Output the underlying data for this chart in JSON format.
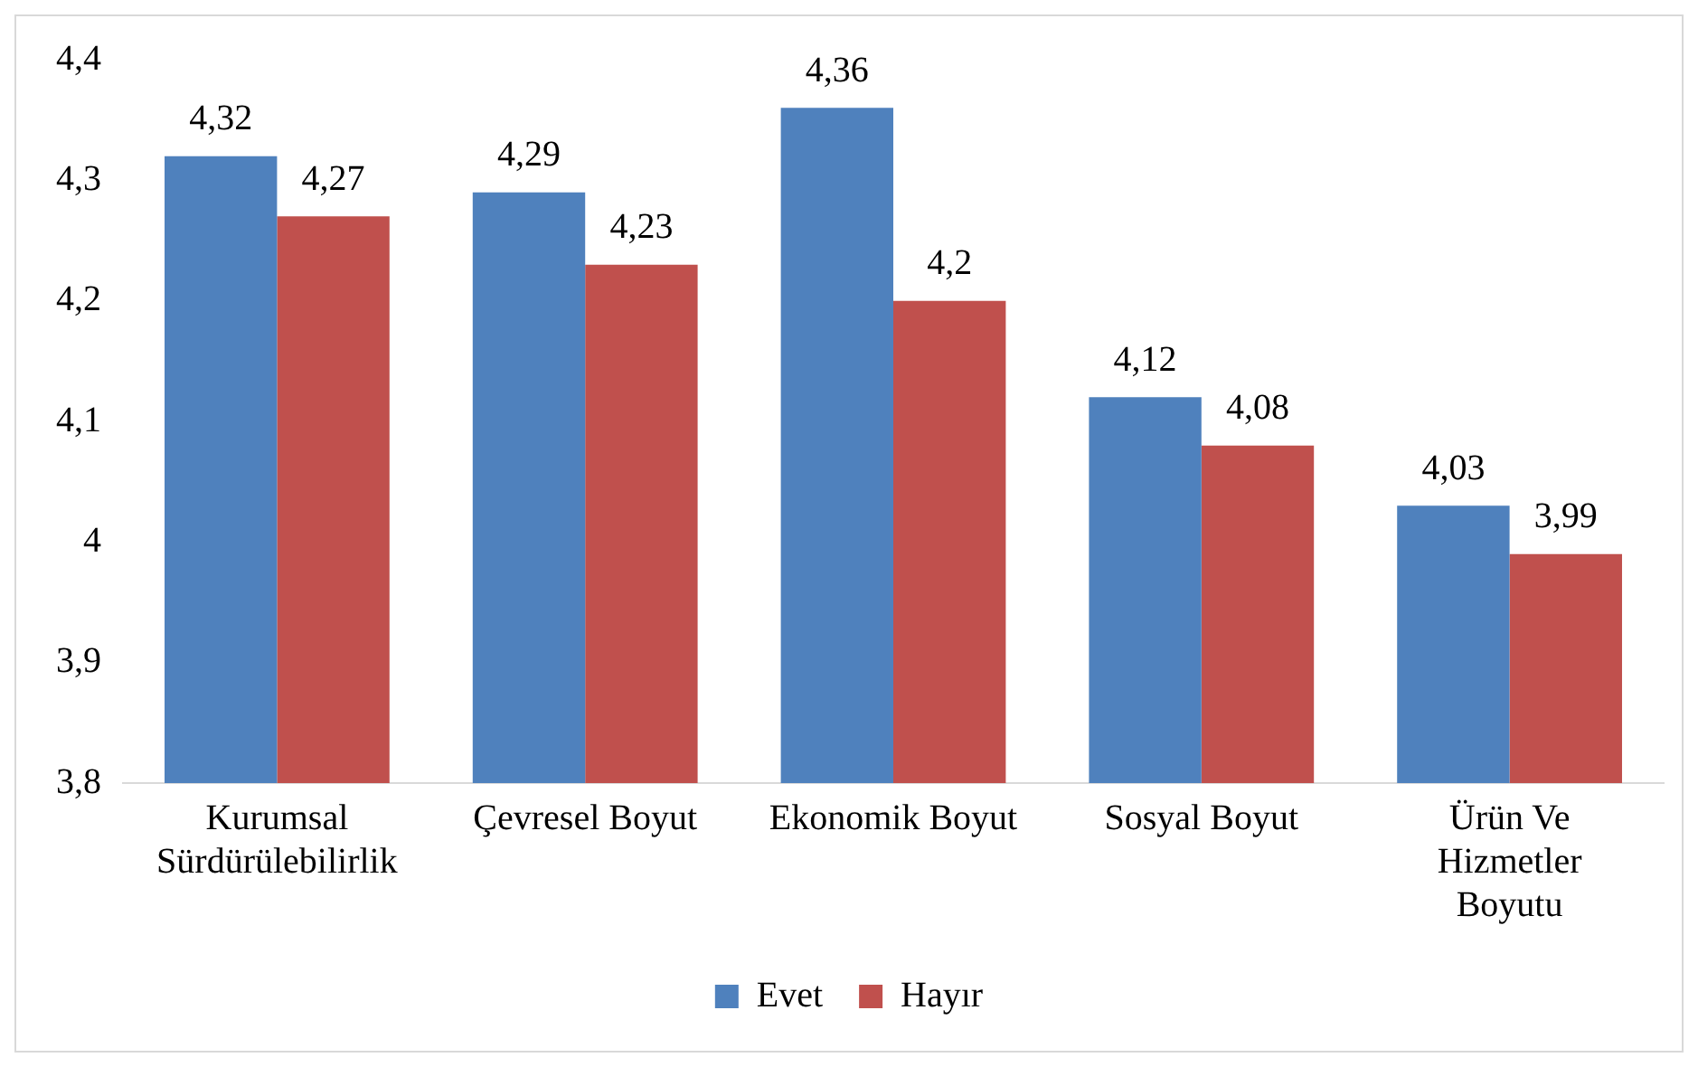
{
  "chart_data": {
    "type": "bar",
    "categories": [
      "Kurumsal Sürdürülebilirlik",
      "Çevresel Boyut",
      "Ekonomik Boyut",
      "Sosyal Boyut",
      "Ürün Ve Hizmetler Boyutu"
    ],
    "series": [
      {
        "name": "Evet",
        "color": "#4f81bd",
        "values": [
          4.32,
          4.29,
          4.36,
          4.12,
          4.03
        ],
        "value_labels": [
          "4,32",
          "4,29",
          "4,36",
          "4,12",
          "4,03"
        ]
      },
      {
        "name": "Hayır",
        "color": "#c0504d",
        "values": [
          4.27,
          4.23,
          4.2,
          4.08,
          3.99
        ],
        "value_labels": [
          "4,27",
          "4,23",
          "4,2",
          "4,08",
          "3,99"
        ]
      }
    ],
    "ylim": [
      3.8,
      4.4
    ],
    "yticks": [
      {
        "value": 3.8,
        "label": "3,8"
      },
      {
        "value": 3.9,
        "label": "3,9"
      },
      {
        "value": 4,
        "label": "4"
      },
      {
        "value": 4.1,
        "label": "4,1"
      },
      {
        "value": 4.2,
        "label": "4,2"
      },
      {
        "value": 4.3,
        "label": "4,3"
      },
      {
        "value": 4.4,
        "label": "4,4"
      }
    ],
    "grid": false,
    "legend": "bottom"
  }
}
